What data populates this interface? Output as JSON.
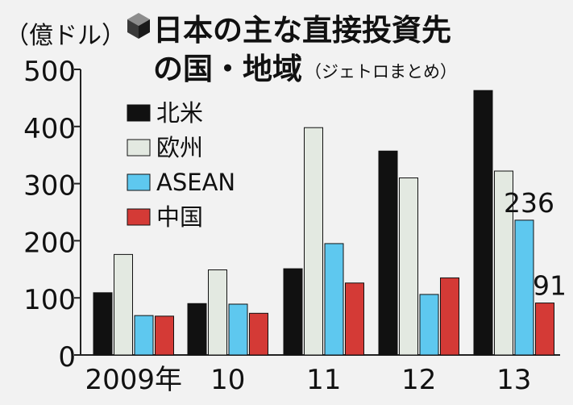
{
  "colors": {
    "background": "#f2f2f2",
    "north_america": "#111111",
    "europe": "#e3e9e1",
    "asean": "#5ec8ef",
    "china": "#d43a36",
    "axis": "#222222",
    "text": "#111111"
  },
  "chart_data": {
    "type": "bar",
    "title_line1": "日本の主な直接投資先",
    "title_line2": "の国・地域",
    "source": "（ジェトロまとめ）",
    "unit": "（億ドル）",
    "title_icon": "cube-icon",
    "categories": [
      "2009年",
      "10",
      "11",
      "12",
      "13"
    ],
    "ylim": [
      0,
      500
    ],
    "yticks": [
      "0",
      "100",
      "200",
      "300",
      "400",
      "500"
    ],
    "legend_placement": "top-left",
    "grid": false,
    "series": [
      {
        "name": "北米",
        "values": [
          109,
          90,
          151,
          357,
          463
        ]
      },
      {
        "name": "欧州",
        "values": [
          176,
          149,
          398,
          310,
          322
        ]
      },
      {
        "name": "ASEAN",
        "values": [
          69,
          89,
          195,
          106,
          236
        ]
      },
      {
        "name": "中国",
        "values": [
          68,
          73,
          126,
          135,
          91
        ]
      }
    ],
    "data_labels": [
      {
        "series": 2,
        "category": 4,
        "text": "236"
      },
      {
        "series": 3,
        "category": 4,
        "text": "91"
      }
    ]
  }
}
